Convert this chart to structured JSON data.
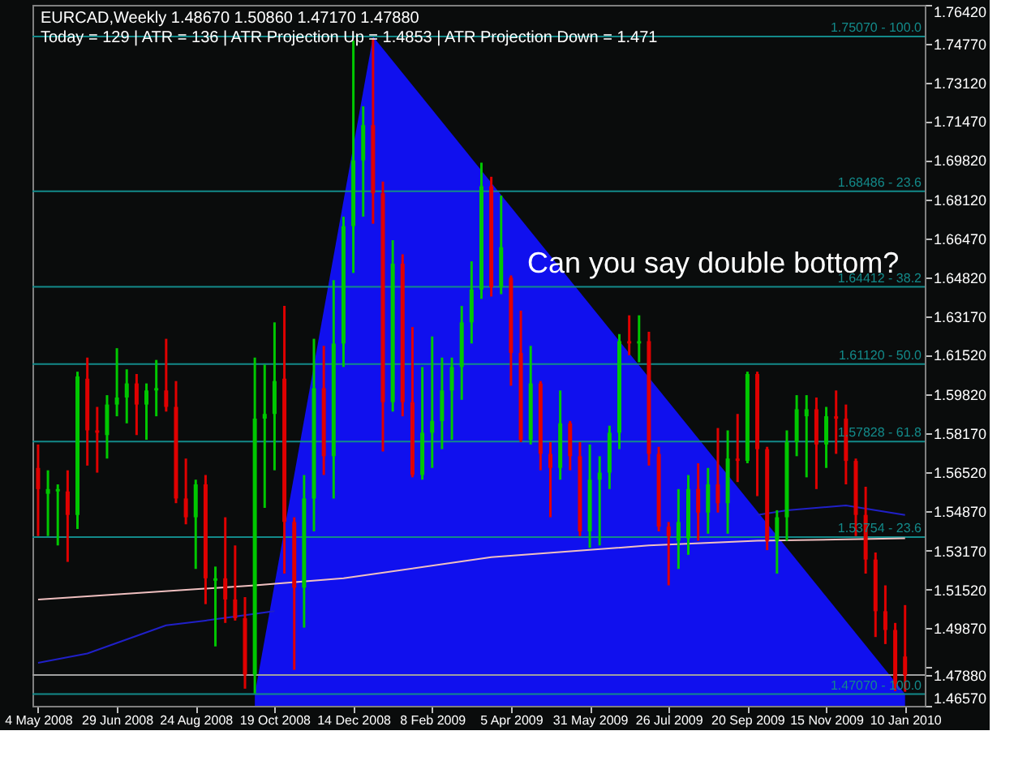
{
  "chart_data": {
    "type": "candlestick",
    "title": "EURCAD,Weekly  1.48670 1.50860 1.47170 1.47880",
    "subtitle": "Today = 129  |  ATR = 136  |  ATR Projection Up = 1.4853  |  ATR Projection Down = 1.471",
    "annotations": [
      "Can you say double bottom?"
    ],
    "x": [
      "2008-05-04",
      "2008-05-11",
      "2008-05-18",
      "2008-05-25",
      "2008-06-01",
      "2008-06-08",
      "2008-06-15",
      "2008-06-22",
      "2008-06-29",
      "2008-07-06",
      "2008-07-13",
      "2008-07-20",
      "2008-07-27",
      "2008-08-03",
      "2008-08-10",
      "2008-08-17",
      "2008-08-24",
      "2008-08-31",
      "2008-09-07",
      "2008-09-14",
      "2008-09-21",
      "2008-09-28",
      "2008-10-05",
      "2008-10-12",
      "2008-10-19",
      "2008-10-26",
      "2008-11-02",
      "2008-11-09",
      "2008-11-16",
      "2008-11-23",
      "2008-11-30",
      "2008-12-07",
      "2008-12-14",
      "2008-12-21",
      "2008-12-28",
      "2009-01-04",
      "2009-01-11",
      "2009-01-18",
      "2009-01-25",
      "2009-02-01",
      "2009-02-08",
      "2009-02-15",
      "2009-02-22",
      "2009-03-01",
      "2009-03-08",
      "2009-03-15",
      "2009-03-22",
      "2009-03-29",
      "2009-04-05",
      "2009-04-12",
      "2009-04-19",
      "2009-04-26",
      "2009-05-03",
      "2009-05-10",
      "2009-05-17",
      "2009-05-24",
      "2009-05-31",
      "2009-06-07",
      "2009-06-14",
      "2009-06-21",
      "2009-06-28",
      "2009-07-05",
      "2009-07-12",
      "2009-07-19",
      "2009-07-26",
      "2009-08-02",
      "2009-08-09",
      "2009-08-16",
      "2009-08-23",
      "2009-08-30",
      "2009-09-06",
      "2009-09-13",
      "2009-09-20",
      "2009-09-27",
      "2009-10-04",
      "2009-10-11",
      "2009-10-18",
      "2009-10-25",
      "2009-11-01",
      "2009-11-08",
      "2009-11-15",
      "2009-11-22",
      "2009-11-29",
      "2009-12-06",
      "2009-12-13",
      "2009-12-20",
      "2009-12-27",
      "2010-01-03",
      "2010-01-10"
    ],
    "ohlc": [
      [
        1.567,
        1.577,
        1.538,
        1.558
      ],
      [
        1.556,
        1.566,
        1.538,
        1.558
      ],
      [
        1.557,
        1.56,
        1.534,
        1.558
      ],
      [
        1.557,
        1.566,
        1.527,
        1.547
      ],
      [
        1.547,
        1.608,
        1.541,
        1.606
      ],
      [
        1.605,
        1.614,
        1.568,
        1.583
      ],
      [
        1.583,
        1.593,
        1.565,
        1.582
      ],
      [
        1.581,
        1.598,
        1.571,
        1.594
      ],
      [
        1.594,
        1.618,
        1.589,
        1.597
      ],
      [
        1.597,
        1.609,
        1.586,
        1.603
      ],
      [
        1.603,
        1.607,
        1.581,
        1.594
      ],
      [
        1.594,
        1.603,
        1.579,
        1.6
      ],
      [
        1.6,
        1.613,
        1.589,
        1.601
      ],
      [
        1.6,
        1.622,
        1.591,
        1.593
      ],
      [
        1.593,
        1.604,
        1.552,
        1.554
      ],
      [
        1.554,
        1.571,
        1.543,
        1.546
      ],
      [
        1.546,
        1.562,
        1.524,
        1.56
      ],
      [
        1.56,
        1.564,
        1.509,
        1.52
      ],
      [
        1.519,
        1.525,
        1.491,
        1.52
      ],
      [
        1.52,
        1.546,
        1.501,
        1.511
      ],
      [
        1.511,
        1.534,
        1.502,
        1.503
      ],
      [
        1.503,
        1.512,
        1.473,
        1.479
      ],
      [
        1.479,
        1.614,
        1.471,
        1.588
      ],
      [
        1.588,
        1.611,
        1.55,
        1.59
      ],
      [
        1.59,
        1.629,
        1.566,
        1.604
      ],
      [
        1.605,
        1.636,
        1.522,
        1.544
      ],
      [
        1.544,
        1.546,
        1.481,
        1.516
      ],
      [
        1.516,
        1.564,
        1.499,
        1.554
      ],
      [
        1.554,
        1.622,
        1.54,
        1.601
      ],
      [
        1.601,
        1.619,
        1.564,
        1.572
      ],
      [
        1.572,
        1.647,
        1.554,
        1.62
      ],
      [
        1.62,
        1.674,
        1.61,
        1.67
      ],
      [
        1.67,
        1.749,
        1.65,
        1.698
      ],
      [
        1.698,
        1.721,
        1.674,
        1.713
      ],
      [
        1.713,
        1.75,
        1.671,
        1.684
      ],
      [
        1.684,
        1.689,
        1.574,
        1.595
      ],
      [
        1.595,
        1.664,
        1.591,
        1.654
      ],
      [
        1.654,
        1.658,
        1.589,
        1.595
      ],
      [
        1.595,
        1.627,
        1.563,
        1.564
      ],
      [
        1.564,
        1.61,
        1.562,
        1.582
      ],
      [
        1.582,
        1.623,
        1.567,
        1.587
      ],
      [
        1.587,
        1.614,
        1.575,
        1.6
      ],
      [
        1.6,
        1.614,
        1.579,
        1.61
      ],
      [
        1.61,
        1.636,
        1.596,
        1.629
      ],
      [
        1.629,
        1.655,
        1.62,
        1.643
      ],
      [
        1.643,
        1.697,
        1.639,
        1.687
      ],
      [
        1.687,
        1.691,
        1.64,
        1.644
      ],
      [
        1.644,
        1.683,
        1.641,
        1.661
      ],
      [
        1.648,
        1.649,
        1.602,
        1.616
      ],
      [
        1.616,
        1.634,
        1.578,
        1.579
      ],
      [
        1.579,
        1.619,
        1.577,
        1.603
      ],
      [
        1.603,
        1.604,
        1.566,
        1.573
      ],
      [
        1.573,
        1.578,
        1.546,
        1.567
      ],
      [
        1.567,
        1.6,
        1.562,
        1.586
      ],
      [
        1.586,
        1.587,
        1.566,
        1.572
      ],
      [
        1.572,
        1.578,
        1.538,
        1.54
      ],
      [
        1.54,
        1.577,
        1.533,
        1.562
      ],
      [
        1.562,
        1.572,
        1.534,
        1.565
      ],
      [
        1.565,
        1.585,
        1.558,
        1.582
      ],
      [
        1.582,
        1.624,
        1.575,
        1.621
      ],
      [
        1.621,
        1.632,
        1.615,
        1.62
      ],
      [
        1.62,
        1.632,
        1.612,
        1.621
      ],
      [
        1.621,
        1.625,
        1.568,
        1.573
      ],
      [
        1.573,
        1.576,
        1.54,
        1.542
      ],
      [
        1.542,
        1.544,
        1.517,
        1.538
      ],
      [
        1.536,
        1.558,
        1.524,
        1.544
      ],
      [
        1.537,
        1.564,
        1.53,
        1.558
      ],
      [
        1.558,
        1.569,
        1.536,
        1.548
      ],
      [
        1.548,
        1.567,
        1.539,
        1.56
      ],
      [
        1.56,
        1.584,
        1.548,
        1.552
      ],
      [
        1.552,
        1.583,
        1.539,
        1.571
      ],
      [
        1.571,
        1.59,
        1.561,
        1.57
      ],
      [
        1.57,
        1.608,
        1.569,
        1.607
      ],
      [
        1.607,
        1.608,
        1.555,
        1.575
      ],
      [
        1.575,
        1.576,
        1.532,
        1.536
      ],
      [
        1.536,
        1.549,
        1.522,
        1.546
      ],
      [
        1.546,
        1.583,
        1.536,
        1.578
      ],
      [
        1.578,
        1.598,
        1.572,
        1.592
      ],
      [
        1.589,
        1.598,
        1.563,
        1.592
      ],
      [
        1.592,
        1.597,
        1.558,
        1.577
      ],
      [
        1.577,
        1.593,
        1.567,
        1.589
      ],
      [
        1.589,
        1.6,
        1.573,
        1.588
      ],
      [
        1.588,
        1.594,
        1.56,
        1.57
      ],
      [
        1.57,
        1.571,
        1.538,
        1.547
      ],
      [
        1.547,
        1.559,
        1.522,
        1.528
      ],
      [
        1.528,
        1.531,
        1.495,
        1.506
      ],
      [
        1.506,
        1.517,
        1.492,
        1.498
      ],
      [
        1.498,
        1.501,
        1.472,
        1.475
      ],
      [
        1.4867,
        1.5086,
        1.4717,
        1.4788
      ]
    ],
    "colors": [
      "#e00000",
      "#00c800",
      "#00c800",
      "#e00000",
      "#00c800",
      "#e00000",
      "#e00000",
      "#00c800",
      "#00c800",
      "#00c800",
      "#e00000",
      "#00c800",
      "#00c800",
      "#e00000",
      "#e00000",
      "#e00000",
      "#00c800",
      "#e00000",
      "#00c800",
      "#e00000",
      "#e00000",
      "#e00000",
      "#00c800",
      "#00c800",
      "#00c800",
      "#e00000",
      "#e00000",
      "#00c800",
      "#00c800",
      "#e00000",
      "#00c800",
      "#00c800",
      "#00c800",
      "#00c800",
      "#e00000",
      "#e00000",
      "#00c800",
      "#e00000",
      "#e00000",
      "#00c800",
      "#00c800",
      "#00c800",
      "#00c800",
      "#00c800",
      "#00c800",
      "#00c800",
      "#e00000",
      "#00c800",
      "#e00000",
      "#e00000",
      "#00c800",
      "#e00000",
      "#e00000",
      "#00c800",
      "#e00000",
      "#e00000",
      "#00c800",
      "#00c800",
      "#00c800",
      "#00c800",
      "#e00000",
      "#00c800",
      "#e00000",
      "#e00000",
      "#e00000",
      "#00c800",
      "#00c800",
      "#e00000",
      "#00c800",
      "#e00000",
      "#00c800",
      "#e00000",
      "#00c800",
      "#e00000",
      "#e00000",
      "#00c800",
      "#00c800",
      "#00c800",
      "#00c800",
      "#e00000",
      "#00c800",
      "#e00000",
      "#e00000",
      "#e00000",
      "#e00000",
      "#e00000",
      "#e00000",
      "#e00000",
      "#e00000"
    ],
    "series": [
      {
        "type": "area",
        "color": "#1010ee",
        "x": [
          "2008-10-05",
          "2008-12-28",
          "2010-01-10"
        ],
        "values": [
          1.4707,
          1.7507,
          1.4707
        ]
      },
      {
        "type": "line",
        "color": "#f0c0c0",
        "x": [
          "2008-05-04",
          "2008-10-05",
          "2008-12-07",
          "2009-03-22",
          "2009-07-12",
          "2009-09-27",
          "2010-01-10"
        ],
        "values": [
          1.511,
          1.517,
          1.52,
          1.529,
          1.534,
          1.536,
          1.537
        ]
      },
      {
        "type": "line",
        "color": "#2020c8",
        "x": [
          "2008-05-04",
          "2008-06-08",
          "2008-08-03",
          "2008-08-31",
          "2008-10-19",
          "2008-10-26",
          "2009-09-20",
          "2009-09-27",
          "2009-10-18",
          "2009-11-29",
          "2010-01-10"
        ],
        "values": [
          1.484,
          1.488,
          1.5,
          1.502,
          1.506,
          null,
          null,
          1.547,
          1.549,
          1.551,
          1.547
        ]
      }
    ],
    "ref_lines": [
      {
        "axis": "y",
        "value": 1.7507,
        "label": "1.75070 - 100.0",
        "color": "#138a8a"
      },
      {
        "axis": "y",
        "value": 1.68486,
        "label": "1.68486 - 23.6",
        "color": "#138a8a"
      },
      {
        "axis": "y",
        "value": 1.64412,
        "label": "1.64412 - 38.2",
        "color": "#138a8a"
      },
      {
        "axis": "y",
        "value": 1.6112,
        "label": "1.61120 - 50.0",
        "color": "#138a8a"
      },
      {
        "axis": "y",
        "value": 1.57828,
        "label": "1.57828 - 61.8",
        "color": "#138a8a"
      },
      {
        "axis": "y",
        "value": 1.53754,
        "label": "1.53754 - 23.6",
        "color": "#138a8a"
      },
      {
        "axis": "y",
        "value": 1.4707,
        "label": "1.47070 - 100.0",
        "color": "#138a8a"
      },
      {
        "axis": "y",
        "value": 1.4788,
        "color": "#a0a0a0"
      }
    ],
    "xlim": [
      "2008-04-30",
      "2010-01-24"
    ],
    "xticks": [
      {
        "value": "2008-05-04",
        "label": "4 May 2008"
      },
      {
        "value": "2008-06-29",
        "label": "29 Jun 2008"
      },
      {
        "value": "2008-08-24",
        "label": "24 Aug 2008"
      },
      {
        "value": "2008-10-19",
        "label": "19 Oct 2008"
      },
      {
        "value": "2008-12-14",
        "label": "14 Dec 2008"
      },
      {
        "value": "2009-02-08",
        "label": "8 Feb 2009"
      },
      {
        "value": "2009-04-05",
        "label": "5 Apr 2009"
      },
      {
        "value": "2009-05-31",
        "label": "31 May 2009"
      },
      {
        "value": "2009-07-26",
        "label": "26 Jul 2009"
      },
      {
        "value": "2009-09-20",
        "label": "20 Sep 2009"
      },
      {
        "value": "2009-11-15",
        "label": "15 Nov 2009"
      },
      {
        "value": "2010-01-10",
        "label": "10 Jan 2010"
      }
    ],
    "ylim": [
      1.4657,
      1.7642
    ],
    "yticks": [
      {
        "value": 1.7642,
        "label": "1.76420"
      },
      {
        "value": 1.7477,
        "label": "1.74770"
      },
      {
        "value": 1.7312,
        "label": "1.73120"
      },
      {
        "value": 1.7147,
        "label": "1.71470"
      },
      {
        "value": 1.6982,
        "label": "1.69820"
      },
      {
        "value": 1.6812,
        "label": "1.68120"
      },
      {
        "value": 1.6647,
        "label": "1.66470"
      },
      {
        "value": 1.6482,
        "label": "1.64820"
      },
      {
        "value": 1.6317,
        "label": "1.63170"
      },
      {
        "value": 1.6152,
        "label": "1.61520"
      },
      {
        "value": 1.5982,
        "label": "1.59820"
      },
      {
        "value": 1.5817,
        "label": "1.58170"
      },
      {
        "value": 1.5652,
        "label": "1.56520"
      },
      {
        "value": 1.5487,
        "label": "1.54870"
      },
      {
        "value": 1.5317,
        "label": "1.53170"
      },
      {
        "value": 1.5152,
        "label": "1.51520"
      },
      {
        "value": 1.4987,
        "label": "1.49870"
      },
      {
        "value": 1.4822,
        "label": null
      },
      {
        "value": 1.4788,
        "label": "1.47880"
      },
      {
        "value": 1.4657,
        "label": "1.46570"
      }
    ]
  }
}
